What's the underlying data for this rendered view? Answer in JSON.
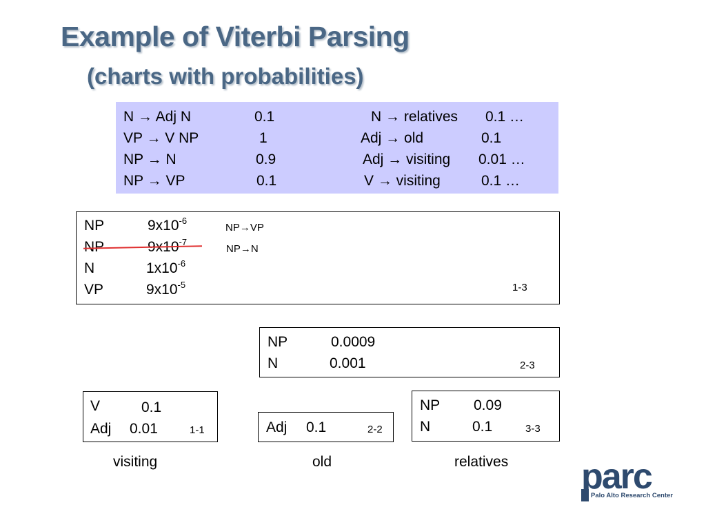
{
  "title": "Example of Viterbi Parsing",
  "subtitle": "(charts with probabilities)",
  "rules": {
    "left": [
      {
        "rule": "N → Adj N",
        "prob": "0.1"
      },
      {
        "rule": "VP → V NP",
        "prob": "1"
      },
      {
        "rule": "NP → N",
        "prob": "0.9"
      },
      {
        "rule": "NP → VP",
        "prob": "0.1"
      }
    ],
    "right": [
      {
        "rule": "N → relatives",
        "prob": "0.1 …"
      },
      {
        "rule": "Adj → old",
        "prob": "0.1"
      },
      {
        "rule": "Adj → visiting",
        "prob": "0.01 …"
      },
      {
        "rule": "V → visiting",
        "prob": "0.1 …"
      }
    ]
  },
  "cells": {
    "c13": {
      "span": "1-3",
      "entries": [
        {
          "cat": "NP",
          "base": "9x10",
          "exp": "-6",
          "note": "NP→VP"
        },
        {
          "cat": "NP",
          "base": "9x10",
          "exp": "-7",
          "note": "NP→N"
        },
        {
          "cat": "N",
          "base": "1x10",
          "exp": "-6"
        },
        {
          "cat": "VP",
          "base": "9x10",
          "exp": "-5"
        }
      ]
    },
    "c23": {
      "span": "2-3",
      "entries": [
        {
          "cat": "NP",
          "prob": "0.0009"
        },
        {
          "cat": "N",
          "prob": "0.001"
        }
      ]
    },
    "c11": {
      "span": "1-1",
      "entries": [
        {
          "cat": "V",
          "prob": "0.1"
        },
        {
          "cat": "Adj",
          "prob": "0.01"
        }
      ]
    },
    "c22": {
      "span": "2-2",
      "entries": [
        {
          "cat": "Adj",
          "prob": "0.1"
        }
      ]
    },
    "c33": {
      "span": "3-3",
      "entries": [
        {
          "cat": "NP",
          "prob": "0.09"
        },
        {
          "cat": "N",
          "prob": "0.1"
        }
      ]
    }
  },
  "words": [
    "visiting",
    "old",
    "relatives"
  ],
  "logo": {
    "word": "parc",
    "tagline": "Palo Alto Research Center"
  },
  "colors": {
    "title": "#4a6785",
    "rules_bg": "#ccccff",
    "strike": "#e03030",
    "logo": "#2e4a6e"
  }
}
